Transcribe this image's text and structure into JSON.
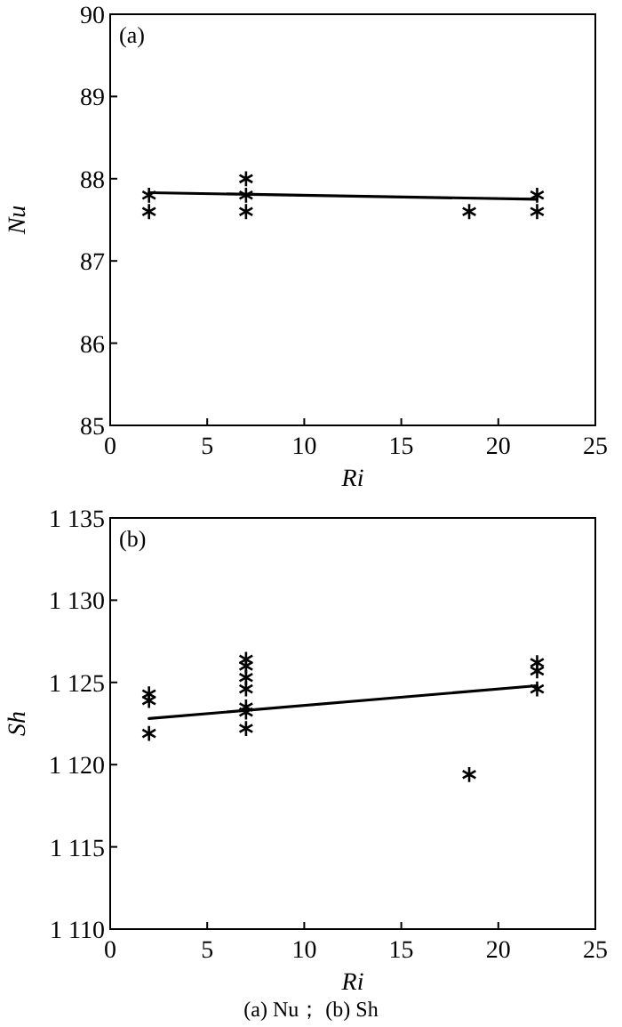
{
  "chart_data": [
    {
      "type": "scatter",
      "title": "(a)",
      "xlabel": "Ri",
      "ylabel": "Nu",
      "xlim": [
        0,
        25
      ],
      "xticks": [
        0,
        5,
        10,
        15,
        20,
        25
      ],
      "ylim": [
        85,
        90
      ],
      "yticks": [
        85,
        86,
        87,
        88,
        89,
        90
      ],
      "grid": false,
      "series": [
        {
          "marker": "cross",
          "color": "#000000",
          "x": [
            2,
            2,
            7,
            7,
            7,
            18.5,
            22,
            22
          ],
          "values": [
            87.8,
            87.6,
            88.0,
            87.8,
            87.6,
            87.6,
            87.8,
            87.6
          ]
        },
        {
          "type": "line",
          "marker": "none",
          "color": "#000000",
          "x": [
            2,
            22
          ],
          "values": [
            87.83,
            87.75
          ]
        }
      ]
    },
    {
      "type": "scatter",
      "title": "(b)",
      "xlabel": "Ri",
      "ylabel": "Sh",
      "xlim": [
        0,
        25
      ],
      "xticks": [
        0,
        5,
        10,
        15,
        20,
        25
      ],
      "ylim": [
        1110,
        1135
      ],
      "yticks": [
        {
          "value": 1110,
          "label": "1 110"
        },
        {
          "value": 1115,
          "label": "1 115"
        },
        {
          "value": 1120,
          "label": "1 120"
        },
        {
          "value": 1125,
          "label": "1 125"
        },
        {
          "value": 1130,
          "label": "1 130"
        },
        {
          "value": 1135,
          "label": "1 135"
        }
      ],
      "grid": false,
      "annotations": [
        "(a) Nu； (b) Sh"
      ],
      "series": [
        {
          "marker": "cross",
          "color": "#000000",
          "x": [
            2,
            2,
            2,
            7,
            7,
            7,
            7,
            7,
            7,
            7,
            18.5,
            22,
            22,
            22
          ],
          "values": [
            1124.3,
            1123.9,
            1121.9,
            1126.4,
            1126.0,
            1125.3,
            1124.6,
            1123.5,
            1123.2,
            1122.2,
            1119.4,
            1126.2,
            1125.7,
            1124.6
          ]
        },
        {
          "type": "line",
          "marker": "none",
          "color": "#000000",
          "x": [
            2,
            22
          ],
          "values": [
            1122.8,
            1124.8
          ]
        }
      ]
    }
  ]
}
